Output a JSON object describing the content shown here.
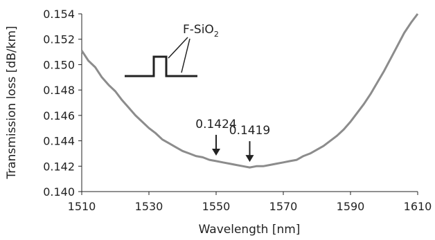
{
  "chart_data": {
    "type": "line",
    "title": "",
    "xlabel": "Wavelength [nm]",
    "ylabel": "Transmission loss [dB/km]",
    "xlim": [
      1510,
      1610
    ],
    "ylim": [
      0.14,
      0.154
    ],
    "x_ticks": [
      "1510",
      "1530",
      "1550",
      "1570",
      "1590",
      "1610"
    ],
    "y_ticks": [
      "0.140",
      "0.142",
      "0.144",
      "0.146",
      "0.148",
      "0.150",
      "0.152",
      "0.154"
    ],
    "grid": false,
    "legend": "none",
    "line_color": "#8c8c8c",
    "series": [
      {
        "x": [
          1510,
          1512,
          1514,
          1516,
          1518,
          1520,
          1522,
          1524,
          1526,
          1528,
          1530,
          1532,
          1534,
          1536,
          1538,
          1540,
          1542,
          1544,
          1546,
          1548,
          1550,
          1552,
          1554,
          1556,
          1558,
          1560,
          1562,
          1564,
          1566,
          1568,
          1570,
          1572,
          1574,
          1576,
          1578,
          1580,
          1582,
          1584,
          1586,
          1588,
          1590,
          1592,
          1594,
          1596,
          1598,
          1600,
          1602,
          1604,
          1606,
          1608,
          1610
        ],
        "values": [
          0.1511,
          0.1503,
          0.1498,
          0.149,
          0.1484,
          0.1479,
          0.1472,
          0.1466,
          0.146,
          0.1455,
          0.145,
          0.1446,
          0.1441,
          0.1438,
          0.1435,
          0.1432,
          0.143,
          0.1428,
          0.1427,
          0.1425,
          0.1424,
          0.1423,
          0.1422,
          0.1421,
          0.142,
          0.1419,
          0.142,
          0.142,
          0.1421,
          0.1422,
          0.1423,
          0.1424,
          0.1425,
          0.1428,
          0.143,
          0.1433,
          0.1436,
          0.144,
          0.1444,
          0.1449,
          0.1455,
          0.1462,
          0.1469,
          0.1477,
          0.1486,
          0.1495,
          0.1505,
          0.1515,
          0.1525,
          0.1533,
          0.154
        ]
      }
    ],
    "annotations": [
      {
        "text": "0.1424",
        "x": 1550,
        "y": 0.1424
      },
      {
        "text": "0.1419",
        "x": 1560,
        "y": 0.1419
      }
    ],
    "inset": {
      "label": "F-SiO",
      "label_sub": "2"
    }
  }
}
